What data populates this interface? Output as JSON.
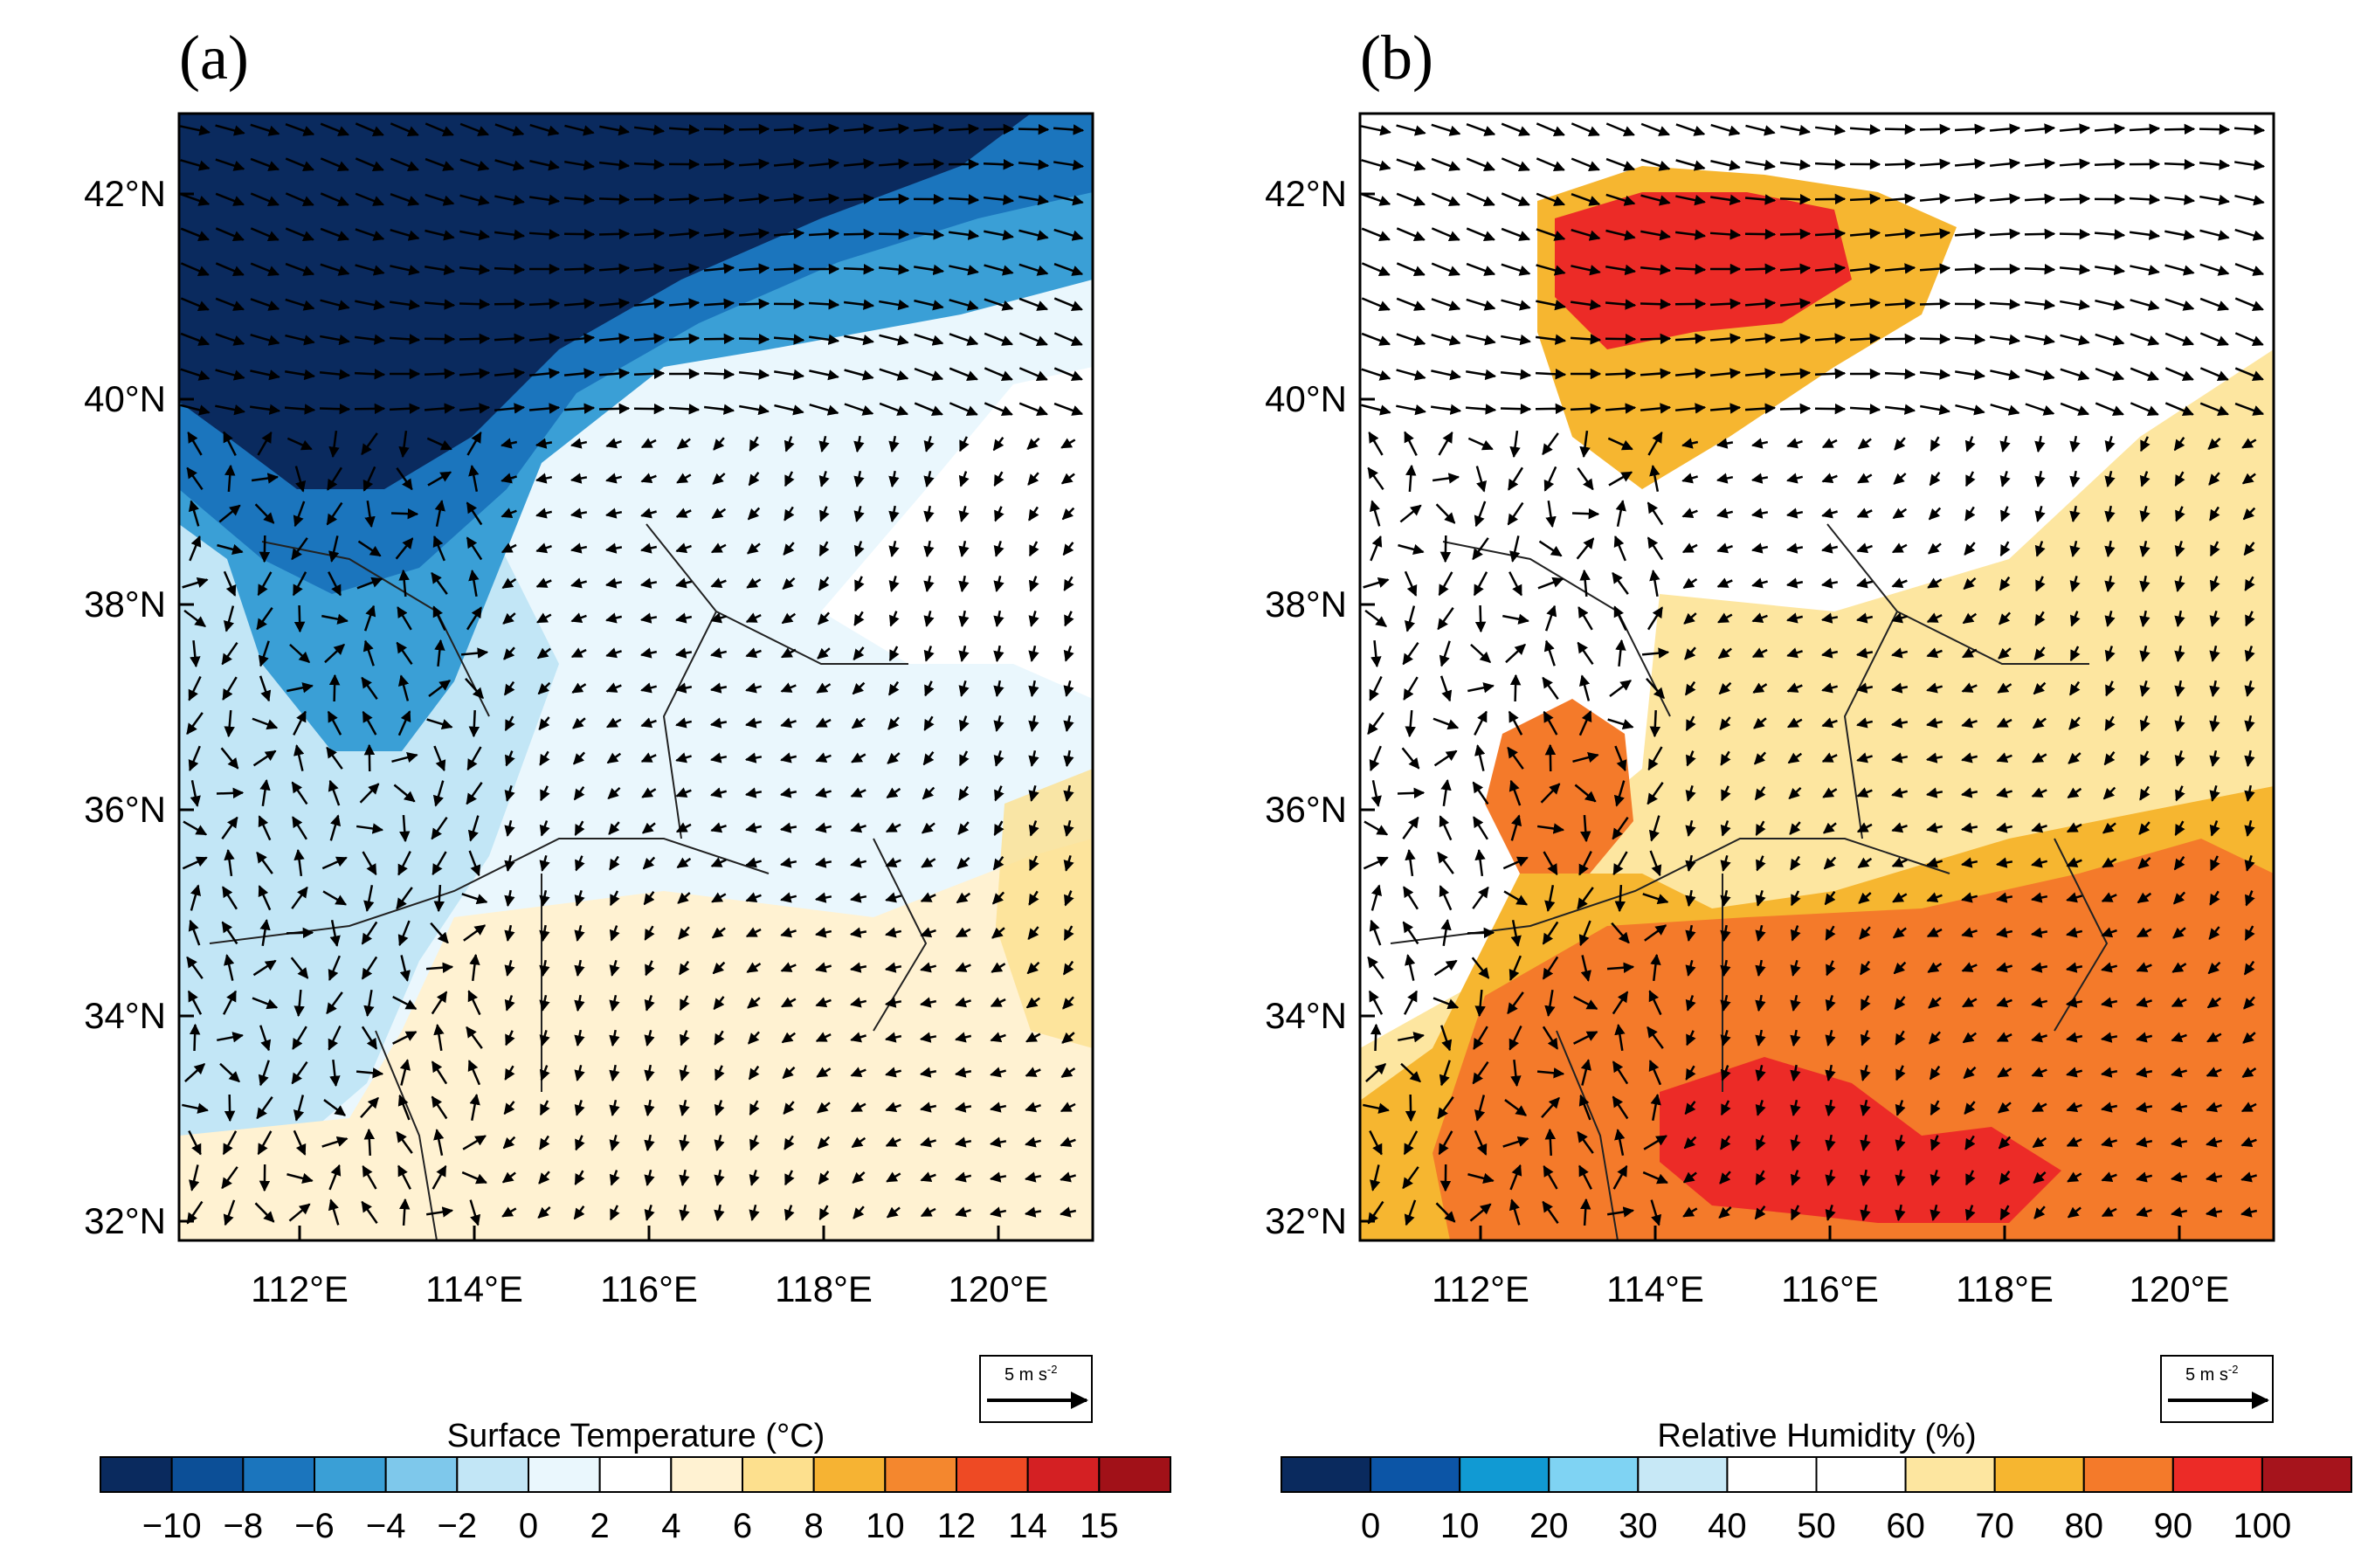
{
  "panels": [
    {
      "label": "(a)",
      "variable": "Surface Temperature  (°C)",
      "lat_labels": [
        "42°N",
        "40°N",
        "38°N",
        "36°N",
        "34°N",
        "32°N"
      ],
      "lon_labels": [
        "112°E",
        "114°E",
        "116°E",
        "118°E",
        "120°E"
      ],
      "ref_vector": "5 m s",
      "ref_exp": "-2",
      "colorbar": {
        "labels": [
          "−10",
          "−8",
          "−6",
          "−4",
          "−2",
          "0",
          "2",
          "4",
          "6",
          "8",
          "10",
          "12",
          "14",
          "15"
        ],
        "colors": [
          "#0a2a5e",
          "#0c4f97",
          "#1b75bd",
          "#3a9fd6",
          "#7ec8eb",
          "#c2e6f6",
          "#eaf7fd",
          "#ffffff",
          "#fff2d2",
          "#fde08e",
          "#f6b333",
          "#f4872e",
          "#ee4a24",
          "#d42023",
          "#a11118"
        ]
      }
    },
    {
      "label": "(b)",
      "variable": "Relative Humidity  (%)",
      "lat_labels": [
        "42°N",
        "40°N",
        "38°N",
        "36°N",
        "34°N",
        "32°N"
      ],
      "lon_labels": [
        "112°E",
        "114°E",
        "116°E",
        "118°E",
        "120°E"
      ],
      "ref_vector": "5 m s",
      "ref_exp": "-2",
      "colorbar": {
        "labels": [
          "0",
          "10",
          "20",
          "30",
          "40",
          "50",
          "60",
          "70",
          "80",
          "90",
          "100"
        ],
        "colors": [
          "#0a2a5e",
          "#0c55a6",
          "#119ad3",
          "#7fd3f3",
          "#c7e8f6",
          "#ffffff",
          "#ffffff",
          "#fde6a0",
          "#f6b630",
          "#f47a2a",
          "#ec2b27",
          "#a6141c"
        ]
      }
    }
  ]
}
